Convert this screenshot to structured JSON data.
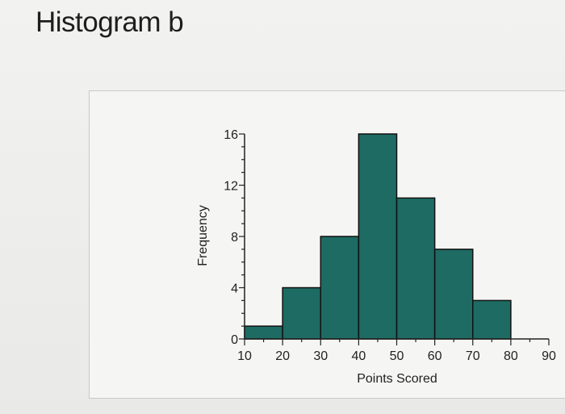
{
  "page": {
    "title": "Histogram b"
  },
  "chart_data": {
    "type": "bar",
    "histogram": true,
    "bins": [
      [
        10,
        20
      ],
      [
        20,
        30
      ],
      [
        30,
        40
      ],
      [
        40,
        50
      ],
      [
        50,
        60
      ],
      [
        60,
        70
      ],
      [
        70,
        80
      ]
    ],
    "values": [
      1,
      4,
      8,
      16,
      11,
      7,
      3
    ],
    "xlabel": "Points Scored",
    "ylabel": "Frequency",
    "xlim": [
      10,
      90
    ],
    "ylim": [
      0,
      16
    ],
    "xticks": [
      10,
      20,
      30,
      40,
      50,
      60,
      70,
      80,
      90
    ],
    "yticks": [
      0,
      4,
      8,
      12,
      16
    ],
    "bar_color": "#1e6b63",
    "bar_edge_color": "#111111",
    "grid": false
  }
}
